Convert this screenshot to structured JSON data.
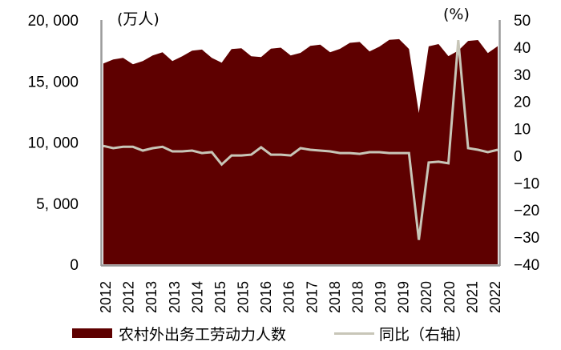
{
  "chart_data": {
    "type": "area+line",
    "title": "",
    "left_axis": {
      "unit_label": "(万人)",
      "ticks": [
        "20, 000",
        "15, 000",
        "10, 000",
        "5, 000",
        "0"
      ],
      "tick_values": [
        20000,
        15000,
        10000,
        5000,
        0
      ],
      "ylim": [
        0,
        20000
      ]
    },
    "right_axis": {
      "unit_label": "(%)",
      "ticks": [
        "50",
        "40",
        "30",
        "20",
        "10",
        "0",
        "−10",
        "−20",
        "−30",
        "−40"
      ],
      "tick_values": [
        50,
        40,
        30,
        20,
        10,
        0,
        -10,
        -20,
        -30,
        -40
      ],
      "ylim": [
        -40,
        50
      ]
    },
    "x_tick_labels": [
      "2012",
      "2012",
      "2013",
      "2013",
      "2014",
      "2015",
      "2015",
      "2016",
      "2016",
      "2017",
      "2018",
      "2018",
      "2019",
      "2019",
      "2020",
      "2020",
      "2021",
      "2022"
    ],
    "series": [
      {
        "name": "农村外出务工劳动力人数",
        "type": "area",
        "axis": "left",
        "color": "#5e0000",
        "values": [
          16440,
          16770,
          16900,
          16380,
          16640,
          17100,
          17360,
          16640,
          17030,
          17490,
          17580,
          16900,
          16510,
          17620,
          17690,
          17030,
          16970,
          17650,
          17740,
          17100,
          17310,
          17890,
          17980,
          17360,
          17640,
          18130,
          18200,
          17430,
          17820,
          18380,
          18430,
          17630,
          12390,
          17840,
          18030,
          17040,
          17490,
          18290,
          18360,
          17300,
          17860
        ]
      },
      {
        "name": "同比（右轴）",
        "type": "line",
        "axis": "right",
        "color": "#c8c6b8",
        "values": [
          3.6,
          2.8,
          3.3,
          3.3,
          1.9,
          2.8,
          3.3,
          1.6,
          1.6,
          1.9,
          1.0,
          1.3,
          -3.2,
          0.1,
          0.1,
          0.4,
          3.1,
          0.4,
          0.4,
          0.1,
          2.8,
          2.2,
          1.9,
          1.6,
          1.0,
          1.0,
          0.7,
          1.3,
          1.3,
          1.0,
          1.0,
          1.0,
          -31.0,
          -2.5,
          -2.2,
          -2.8,
          42.6,
          2.8,
          2.2,
          1.3,
          2.2
        ]
      }
    ],
    "legend": {
      "position": "bottom",
      "entries": [
        "农村外出务工劳动力人数",
        "同比（右轴）"
      ]
    },
    "grid": false
  }
}
